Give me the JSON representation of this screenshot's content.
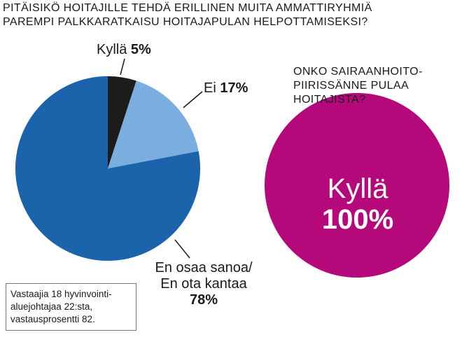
{
  "title_lines": [
    "PITÄISIKÖ HOITAJILLE TEHDÄ ERILLINEN MUITA AMMATTIRYHMIÄ",
    "PAREMPI PALKKARATKAISU HOITAJAPULAN HELPOTTAMISEKSI?"
  ],
  "subtitle_lines": [
    "ONKO SAIRAANHOITO-",
    "PIIRISSÄNNE PULAA",
    "HOITAJISTA?"
  ],
  "note_lines": [
    "Vastaajia 18 hyvinvointi-",
    "aluejohtajaa 22:sta,",
    "vastausprosentti 82."
  ],
  "chart_data": [
    {
      "type": "pie",
      "title": "PITÄISIKÖ HOITAJILLE TEHDÄ ERILLINEN MUITA AMMATTIRYHMIÄ PAREMPI PALKKARATKAISU HOITAJAPULAN HELPOTTAMISEKSI?",
      "slices": [
        {
          "label": "Kyllä",
          "value": 5,
          "value_text": "5%",
          "color": "#1c1c1c"
        },
        {
          "label": "Ei",
          "value": 17,
          "value_text": "17%",
          "color": "#7aaee0"
        },
        {
          "label_lines": [
            "En osaa sanoa/",
            "En ota kantaa"
          ],
          "value": 78,
          "value_text": "78%",
          "color": "#1b63ab"
        }
      ]
    },
    {
      "type": "pie",
      "title": "ONKO SAIRAANHOITO- PIIRISSÄNNE PULAA HOITAJISTA?",
      "slices": [
        {
          "label": "Kyllä",
          "value": 100,
          "value_text": "100%",
          "color": "#b5087a"
        }
      ]
    }
  ]
}
